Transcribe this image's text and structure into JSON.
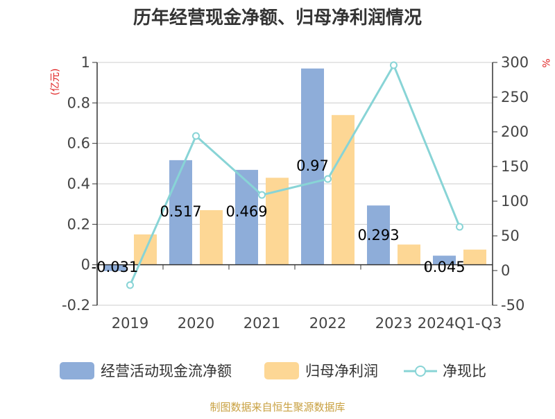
{
  "title": "历年经营现金净额、归母净利润情况",
  "left_unit": "(亿元)",
  "right_unit": "%",
  "source": "制图数据来自恒生聚源数据库",
  "colors": {
    "operating_cash": "#8eadd9",
    "net_profit": "#fdd795",
    "ratio": "#88d4d6",
    "axis": "#333333",
    "grid": "#cccccc"
  },
  "chart_data": {
    "type": "bar",
    "categories": [
      "2019",
      "2020",
      "2021",
      "2022",
      "2023",
      "2024Q1-Q3"
    ],
    "left_axis": {
      "ylim": [
        -0.2,
        1
      ],
      "ticks": [
        "1",
        "0.8",
        "0.6",
        "0.4",
        "0.2",
        "0",
        "-0.2"
      ],
      "tick_values": [
        1,
        0.8,
        0.6,
        0.4,
        0.2,
        0,
        -0.2
      ]
    },
    "right_axis": {
      "ylim": [
        -50,
        300
      ],
      "ticks": [
        "300",
        "250",
        "200",
        "150",
        "100",
        "50",
        "0",
        "-50"
      ],
      "tick_values": [
        300,
        250,
        200,
        150,
        100,
        50,
        0,
        -50
      ]
    },
    "series": [
      {
        "name": "经营活动现金流净额",
        "type": "bar",
        "axis": "left",
        "values": [
          -0.031,
          0.517,
          0.469,
          0.97,
          0.293,
          0.045
        ],
        "labels": [
          "-0.031",
          "0.517",
          "0.469",
          "0.97",
          "0.293",
          "0.045"
        ]
      },
      {
        "name": "归母净利润",
        "type": "bar",
        "axis": "left",
        "values": [
          0.15,
          0.27,
          0.43,
          0.74,
          0.1,
          0.075
        ]
      },
      {
        "name": "净现比",
        "type": "line",
        "axis": "right",
        "values": [
          -21,
          194,
          109,
          132,
          296,
          63
        ]
      }
    ],
    "grid": true,
    "legend_position": "bottom"
  }
}
